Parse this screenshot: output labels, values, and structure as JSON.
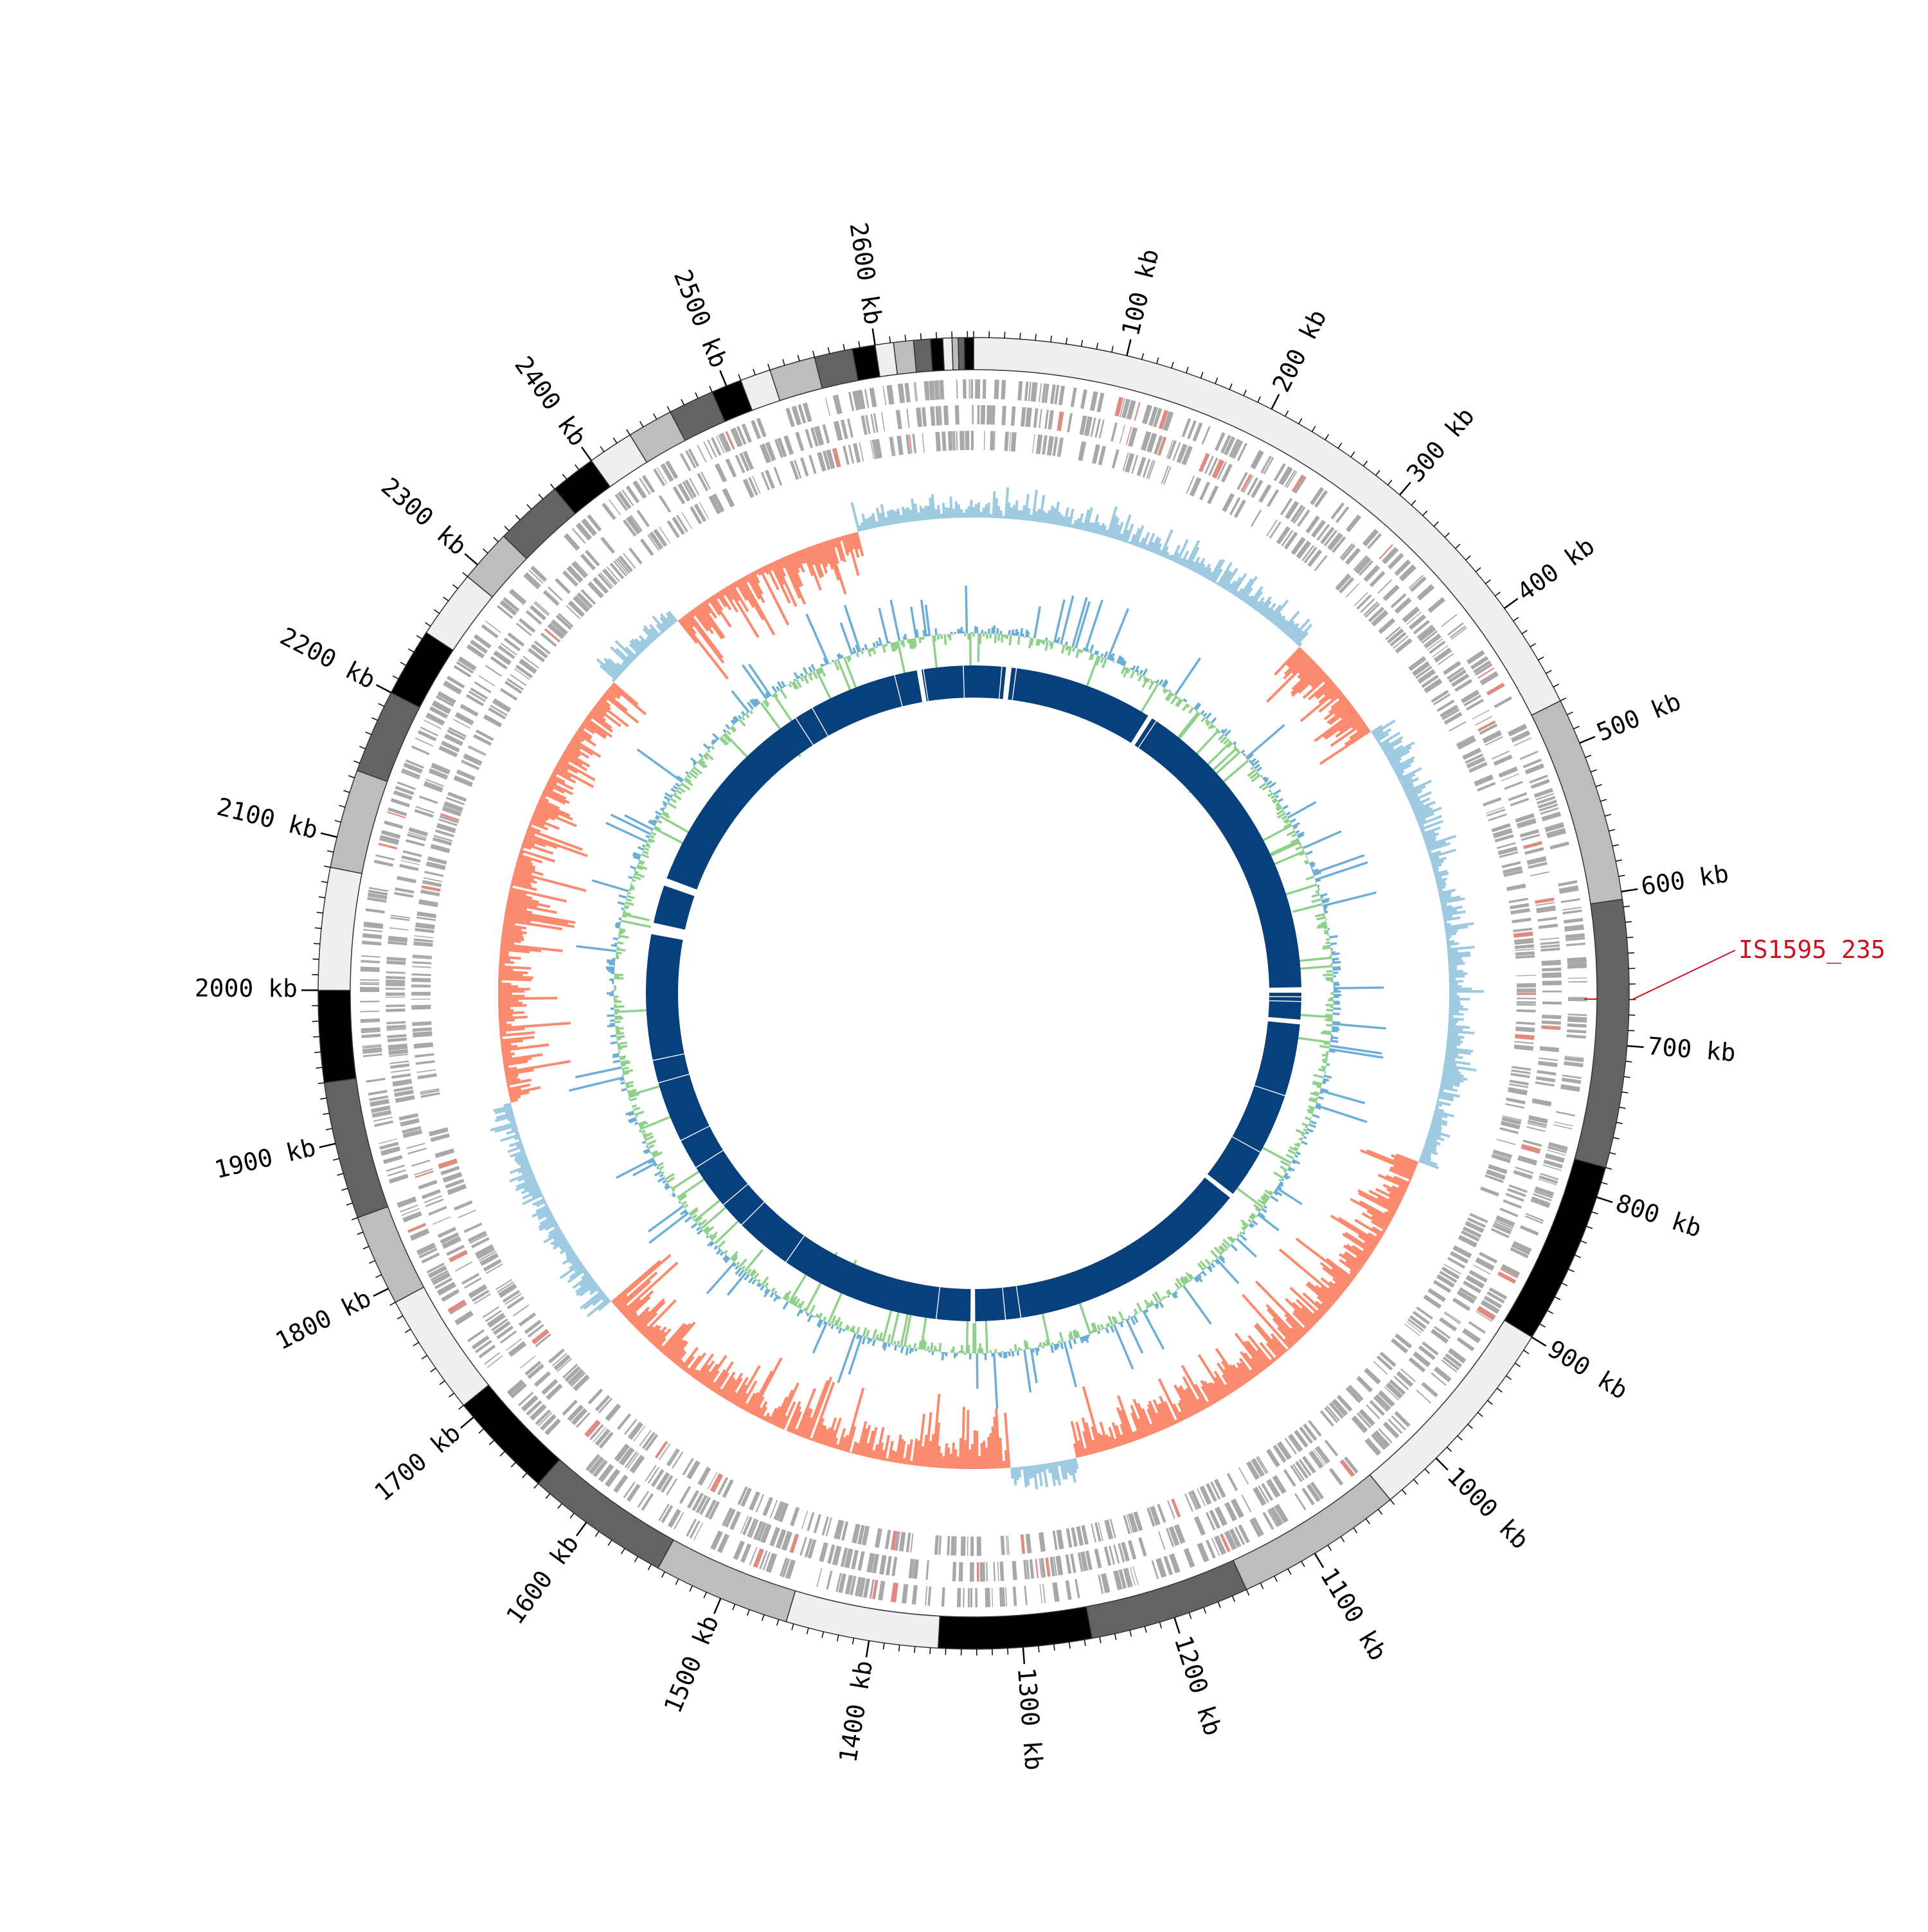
{
  "genome": {
    "length_kb": 2664,
    "unit": "kb",
    "tick_labels": [
      "100 kb",
      "200 kb",
      "300 kb",
      "400 kb",
      "500 kb",
      "600 kb",
      "700 kb",
      "800 kb",
      "900 kb",
      "1000 kb",
      "1100 kb",
      "1200 kb",
      "1300 kb",
      "1400 kb",
      "1500 kb",
      "1600 kb",
      "1700 kb",
      "1800 kb",
      "1900 kb",
      "2000 kb",
      "2100 kb",
      "2200 kb",
      "2300 kb",
      "2400 kb",
      "2500 kb",
      "2600 kb"
    ],
    "tick_positions_kb": [
      100,
      200,
      300,
      400,
      500,
      600,
      700,
      800,
      900,
      1000,
      1100,
      1200,
      1300,
      1400,
      1500,
      1600,
      1700,
      1800,
      1900,
      2000,
      2100,
      2200,
      2300,
      2400,
      2500,
      2600
    ]
  },
  "contig_blocks_kb": [
    [
      0,
      470,
      "#efefef"
    ],
    [
      470,
      605,
      "#bdbdbd"
    ],
    [
      605,
      780,
      "#636363"
    ],
    [
      780,
      900,
      "#000000"
    ],
    [
      900,
      1040,
      "#efefef"
    ],
    [
      1040,
      1150,
      "#bdbdbd"
    ],
    [
      1150,
      1255,
      "#636363"
    ],
    [
      1255,
      1355,
      "#000000"
    ],
    [
      1355,
      1455,
      "#efefef"
    ],
    [
      1455,
      1545,
      "#bdbdbd"
    ],
    [
      1545,
      1640,
      "#636363"
    ],
    [
      1640,
      1710,
      "#000000"
    ],
    [
      1710,
      1790,
      "#efefef"
    ],
    [
      1790,
      1850,
      "#bdbdbd"
    ],
    [
      1850,
      1940,
      "#636363"
    ],
    [
      1940,
      2000,
      "#000000"
    ],
    [
      2000,
      2080,
      "#efefef"
    ],
    [
      2080,
      2145,
      "#bdbdbd"
    ],
    [
      2145,
      2200,
      "#636363"
    ],
    [
      2200,
      2245,
      "#000000"
    ],
    [
      2245,
      2290,
      "#efefef"
    ],
    [
      2290,
      2325,
      "#bdbdbd"
    ],
    [
      2325,
      2370,
      "#636363"
    ],
    [
      2370,
      2400,
      "#000000"
    ],
    [
      2400,
      2430,
      "#efefef"
    ],
    [
      2430,
      2460,
      "#bdbdbd"
    ],
    [
      2460,
      2490,
      "#636363"
    ],
    [
      2490,
      2510,
      "#000000"
    ],
    [
      2510,
      2530,
      "#efefef"
    ],
    [
      2530,
      2560,
      "#bdbdbd"
    ],
    [
      2560,
      2585,
      "#636363"
    ],
    [
      2585,
      2600,
      "#000000"
    ],
    [
      2600,
      2612,
      "#efefef"
    ],
    [
      2612,
      2625,
      "#bdbdbd"
    ],
    [
      2625,
      2636,
      "#636363"
    ],
    [
      2636,
      2644,
      "#000000"
    ],
    [
      2644,
      2650,
      "#efefef"
    ],
    [
      2650,
      2654,
      "#bdbdbd"
    ],
    [
      2654,
      2658,
      "#636363"
    ],
    [
      2658,
      2664,
      "#000000"
    ]
  ],
  "homology_gaps_kb": [
    36,
    42,
    48,
    55,
    238,
    250,
    2420,
    2445,
    2560,
    2590,
    2598,
    2650,
    658,
    664,
    670,
    676,
    700,
    800,
    880,
    945,
    1270,
    1290,
    1330,
    1380,
    1590,
    1665,
    1700,
    1760,
    1800,
    1880,
    1910,
    2080,
    2148
  ],
  "annotation": {
    "label": "IS1595_235",
    "position_kb": 670,
    "color": "#cc1122"
  },
  "colors": {
    "gc_skew_positive": "#9ecae1",
    "gc_skew_negative": "#fb8a6e",
    "gc_content": "#8fd18a",
    "gc_content_line": "#6baed6",
    "homology_ring": "#08407e",
    "cds_feature": "#a8a8a8",
    "cds_feature_alt": "#e08a80"
  }
}
